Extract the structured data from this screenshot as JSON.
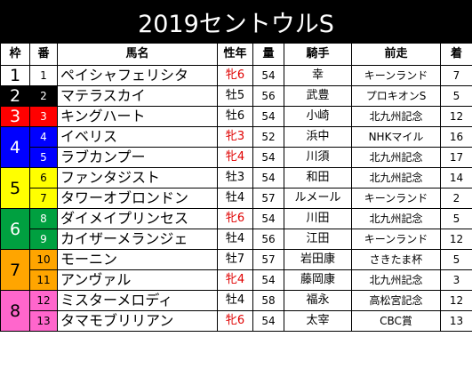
{
  "title": "2019セントウルS",
  "headers": {
    "waku": "枠",
    "umaban": "番",
    "name": "馬名",
    "sex_age": "性年",
    "weight": "量",
    "jockey": "騎手",
    "prev_race": "前走",
    "finish": "着"
  },
  "colors": {
    "waku1": "#ffffff",
    "waku2": "#000000",
    "waku3": "#ff0000",
    "waku4": "#0000ff",
    "waku5": "#ffff00",
    "waku6": "#00a040",
    "waku7": "#ffa500",
    "waku8": "#ff66cc",
    "filly_text": "#e00000"
  },
  "wakus": [
    {
      "label": "1",
      "bg": "#ffffff",
      "fg": "#000000",
      "rows": [
        {
          "num": "1",
          "name": "ペイシャフェリシタ",
          "sex": "牝6",
          "filly": true,
          "wt": "54",
          "jockey": "幸",
          "prev": "キーンランド",
          "fin": "7"
        }
      ]
    },
    {
      "label": "2",
      "bg": "#000000",
      "fg": "#ffffff",
      "rows": [
        {
          "num": "2",
          "name": "マテラスカイ",
          "sex": "牡5",
          "filly": false,
          "wt": "56",
          "jockey": "武豊",
          "prev": "プロキオンS",
          "fin": "5"
        }
      ]
    },
    {
      "label": "3",
      "bg": "#ff0000",
      "fg": "#ffffff",
      "rows": [
        {
          "num": "3",
          "name": "キングハート",
          "sex": "牡6",
          "filly": false,
          "wt": "54",
          "jockey": "小崎",
          "prev": "北九州記念",
          "fin": "12"
        }
      ]
    },
    {
      "label": "4",
      "bg": "#0000ff",
      "fg": "#ffffff",
      "rows": [
        {
          "num": "4",
          "name": "イベリス",
          "sex": "牝3",
          "filly": true,
          "wt": "52",
          "jockey": "浜中",
          "prev": "NHKマイル",
          "fin": "16"
        },
        {
          "num": "5",
          "name": "ラブカンプー",
          "sex": "牝4",
          "filly": true,
          "wt": "54",
          "jockey": "川須",
          "prev": "北九州記念",
          "fin": "17"
        }
      ]
    },
    {
      "label": "5",
      "bg": "#ffff00",
      "fg": "#000000",
      "rows": [
        {
          "num": "6",
          "name": "ファンタジスト",
          "sex": "牡3",
          "filly": false,
          "wt": "54",
          "jockey": "和田",
          "prev": "北九州記念",
          "fin": "14"
        },
        {
          "num": "7",
          "name": "タワーオブロンドン",
          "sex": "牡4",
          "filly": false,
          "wt": "57",
          "jockey": "ルメール",
          "prev": "キーンランド",
          "fin": "2"
        }
      ]
    },
    {
      "label": "6",
      "bg": "#00a040",
      "fg": "#ffffff",
      "rows": [
        {
          "num": "8",
          "name": "ダイメイプリンセス",
          "sex": "牝6",
          "filly": true,
          "wt": "54",
          "jockey": "川田",
          "prev": "北九州記念",
          "fin": "5"
        },
        {
          "num": "9",
          "name": "カイザーメランジェ",
          "sex": "牡4",
          "filly": false,
          "wt": "56",
          "jockey": "江田",
          "prev": "キーンランド",
          "fin": "12"
        }
      ]
    },
    {
      "label": "7",
      "bg": "#ffa500",
      "fg": "#000000",
      "rows": [
        {
          "num": "10",
          "name": "モーニン",
          "sex": "牡7",
          "filly": false,
          "wt": "57",
          "jockey": "岩田康",
          "prev": "さきたま杯",
          "fin": "5"
        },
        {
          "num": "11",
          "name": "アンヴァル",
          "sex": "牝4",
          "filly": true,
          "wt": "54",
          "jockey": "藤岡康",
          "prev": "北九州記念",
          "fin": "3"
        }
      ]
    },
    {
      "label": "8",
      "bg": "#ff66cc",
      "fg": "#000000",
      "rows": [
        {
          "num": "12",
          "name": "ミスターメロディ",
          "sex": "牡4",
          "filly": false,
          "wt": "58",
          "jockey": "福永",
          "prev": "高松宮記念",
          "fin": "12"
        },
        {
          "num": "13",
          "name": "タマモブリリアン",
          "sex": "牝6",
          "filly": true,
          "wt": "54",
          "jockey": "太宰",
          "prev": "CBC賞",
          "fin": "13"
        }
      ]
    }
  ]
}
